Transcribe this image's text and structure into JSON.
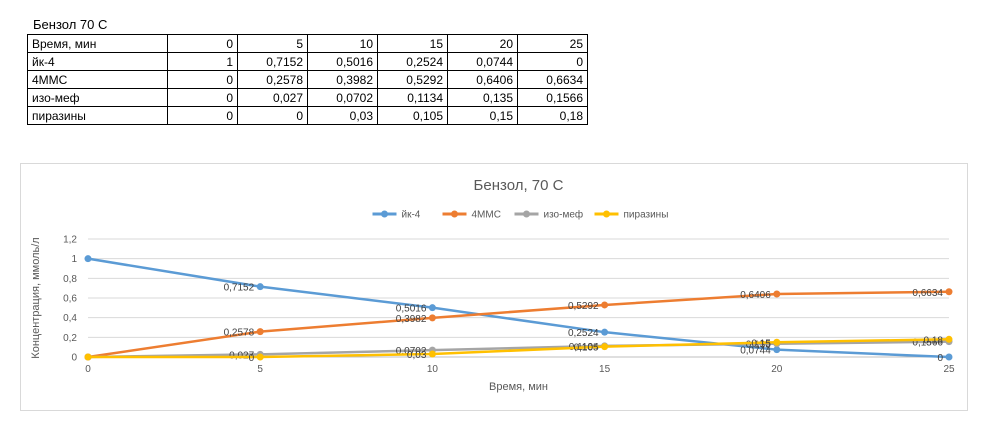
{
  "sheet": {
    "title": "Бензол 70 С"
  },
  "table": {
    "header_label": "Время, мин",
    "header_values": [
      "0",
      "5",
      "10",
      "15",
      "20",
      "25"
    ],
    "rows": [
      {
        "label": "йк-4",
        "values": [
          "1",
          "0,7152",
          "0,5016",
          "0,2524",
          "0,0744",
          "0"
        ]
      },
      {
        "label": "4ММС",
        "values": [
          "0",
          "0,2578",
          "0,3982",
          "0,5292",
          "0,6406",
          "0,6634"
        ]
      },
      {
        "label": "изо-меф",
        "values": [
          "0",
          "0,027",
          "0,0702",
          "0,1134",
          "0,135",
          "0,1566"
        ]
      },
      {
        "label": "пиразины",
        "values": [
          "0",
          "0",
          "0,03",
          "0,105",
          "0,15",
          "0,18"
        ]
      }
    ]
  },
  "chart_data": {
    "type": "line",
    "title": "Бензол, 70 С",
    "xlabel": "Время, мин",
    "ylabel": "Концентрация, ммоль/л",
    "x": [
      0,
      5,
      10,
      15,
      20,
      25
    ],
    "xticks": [
      "0",
      "5",
      "10",
      "15",
      "20",
      "25"
    ],
    "ylim": [
      0,
      1.2
    ],
    "yticks": [
      "0",
      "0,2",
      "0,4",
      "0,6",
      "0,8",
      "1",
      "1,2"
    ],
    "yticks_values": [
      0,
      0.2,
      0.4,
      0.6,
      0.8,
      1.0,
      1.2
    ],
    "grid": true,
    "legend_position": "top",
    "series": [
      {
        "name": "йк-4",
        "color": "#5b9bd5",
        "values": [
          1,
          0.7152,
          0.5016,
          0.2524,
          0.0744,
          0
        ],
        "labels": [
          "",
          "0,7152",
          "0,5016",
          "0,2524",
          "0,0744",
          "0"
        ]
      },
      {
        "name": "4ММС",
        "color": "#ed7d31",
        "values": [
          0,
          0.2578,
          0.3982,
          0.5292,
          0.6406,
          0.6634
        ],
        "labels": [
          "",
          "0,2578",
          "0,3982",
          "0,5292",
          "0,6406",
          "0,6634"
        ]
      },
      {
        "name": "изо-меф",
        "color": "#a5a5a5",
        "values": [
          0,
          0.027,
          0.0702,
          0.1134,
          0.135,
          0.1566
        ],
        "labels": [
          "",
          "0,027",
          "0,0702",
          "0,1134",
          "0,135",
          "0,1566"
        ]
      },
      {
        "name": "пиразины",
        "color": "#ffc000",
        "values": [
          0,
          0,
          0.03,
          0.105,
          0.15,
          0.18
        ],
        "labels": [
          "",
          "0",
          "0,03",
          "0,105",
          "0,15",
          "0,18"
        ]
      }
    ]
  }
}
